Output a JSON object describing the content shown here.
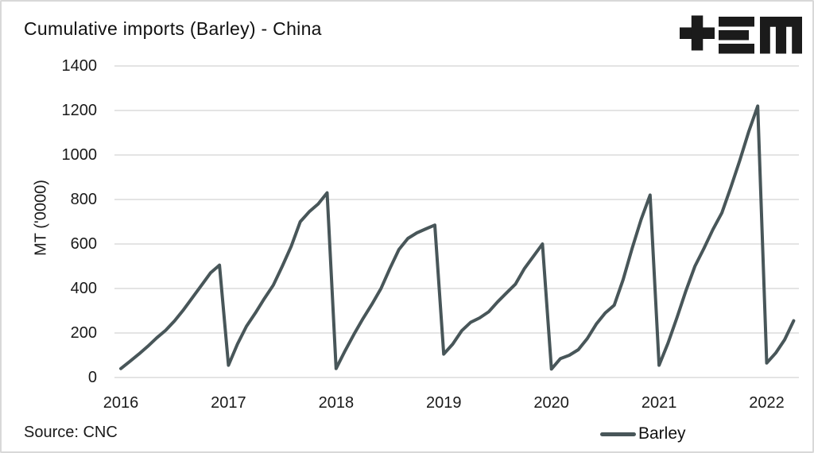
{
  "header": {
    "logo": "tem-logo"
  },
  "source": {
    "label": "Source: CNC"
  },
  "chart_data": {
    "type": "line",
    "title": "Cumulative imports (Barley) - China",
    "xlabel": "",
    "ylabel": "MT ('0000)",
    "ylim": [
      0,
      1400
    ],
    "y_ticks": [
      0,
      200,
      400,
      600,
      800,
      1000,
      1200,
      1400
    ],
    "x_tick_labels": [
      "2016",
      "2017",
      "2018",
      "2019",
      "2020",
      "2021",
      "2022"
    ],
    "grid": "horizontal-only",
    "gridline_color": "#e4e4e4",
    "legend": {
      "position": "bottom-right",
      "label": "Barley"
    },
    "series": [
      {
        "name": "Barley",
        "color": "#485659",
        "frequency": "monthly",
        "start": "2016-01",
        "end": "2022-04",
        "values": [
          40,
          72,
          105,
          140,
          178,
          212,
          255,
          305,
          360,
          415,
          470,
          505,
          55,
          150,
          230,
          290,
          355,
          415,
          500,
          590,
          700,
          745,
          780,
          830,
          40,
          120,
          195,
          265,
          330,
          400,
          490,
          575,
          625,
          650,
          668,
          685,
          105,
          150,
          210,
          248,
          268,
          295,
          340,
          380,
          420,
          490,
          545,
          600,
          38,
          85,
          100,
          125,
          175,
          240,
          290,
          325,
          440,
          580,
          710,
          820,
          55,
          155,
          270,
          390,
          500,
          580,
          665,
          740,
          855,
          975,
          1105,
          1220,
          65,
          110,
          170,
          255
        ]
      }
    ]
  }
}
